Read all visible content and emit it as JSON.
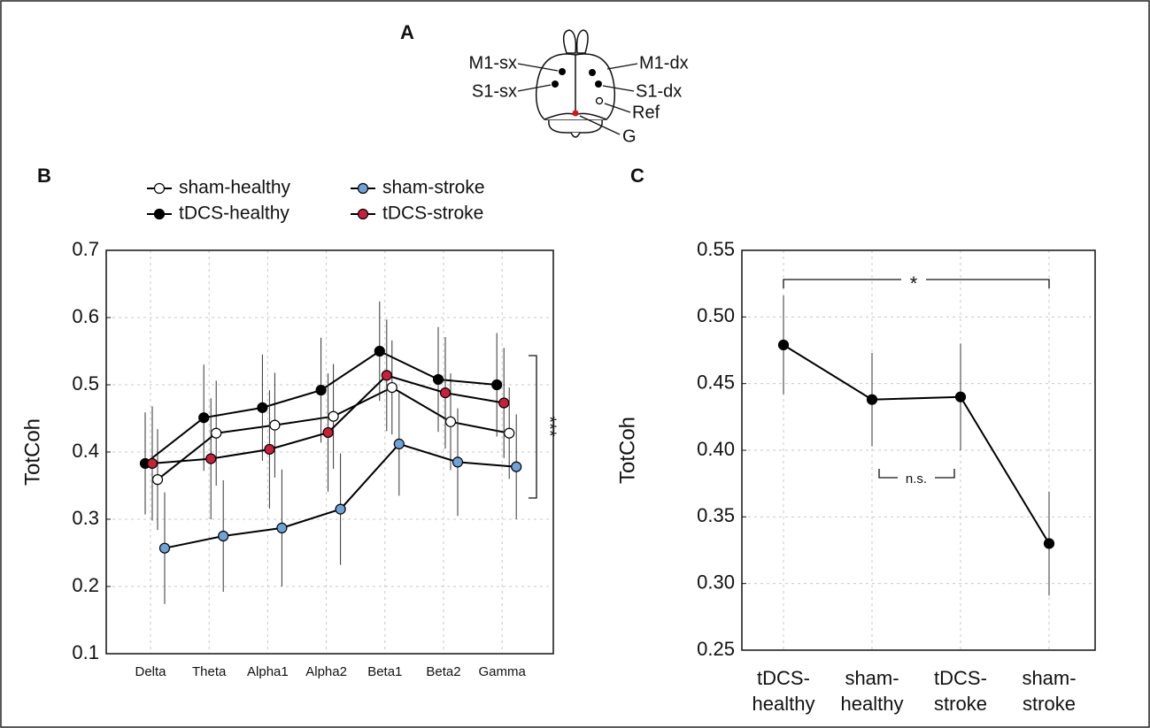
{
  "diagram": {
    "label": "A",
    "electrodes": [
      "M1-sx",
      "S1-sx",
      "M1-dx",
      "S1-dx",
      "Ref",
      "G"
    ]
  },
  "chart_data": [
    {
      "type": "line",
      "label": "B",
      "y_label": "TotCoh",
      "categories": [
        "Delta",
        "Theta",
        "Alpha1",
        "Alpha2",
        "Beta1",
        "Beta2",
        "Gamma"
      ],
      "line_color": "#000000",
      "series": [
        {
          "name": "sham-healthy",
          "color": "#ffffff",
          "values": [
            0.359,
            0.428,
            0.44,
            0.453,
            0.496,
            0.445,
            0.428
          ],
          "errors": [
            0.075,
            0.078,
            0.078,
            0.078,
            0.07,
            0.072,
            0.068
          ]
        },
        {
          "name": "tDCS-healthy",
          "color": "#000000",
          "values": [
            0.383,
            0.451,
            0.466,
            0.492,
            0.55,
            0.508,
            0.5
          ],
          "errors": [
            0.076,
            0.079,
            0.079,
            0.078,
            0.074,
            0.078,
            0.077
          ]
        },
        {
          "name": "sham-stroke",
          "color": "#6fa3d8",
          "values": [
            0.257,
            0.275,
            0.287,
            0.315,
            0.412,
            0.385,
            0.378
          ],
          "errors": [
            0.083,
            0.083,
            0.087,
            0.083,
            0.077,
            0.08,
            0.078
          ]
        },
        {
          "name": "tDCS-stroke",
          "color": "#c8203c",
          "values": [
            0.383,
            0.39,
            0.404,
            0.429,
            0.514,
            0.488,
            0.473
          ],
          "errors": [
            0.085,
            0.09,
            0.088,
            0.088,
            0.083,
            0.083,
            0.082
          ]
        }
      ],
      "ylim": [
        0.1,
        0.7
      ],
      "yticks": [
        0.1,
        0.2,
        0.3,
        0.4,
        0.5,
        0.6,
        0.7
      ],
      "grid": true,
      "annotation": "***"
    },
    {
      "type": "line",
      "label": "C",
      "y_label": "TotCoh",
      "categories": [
        "tDCS-\nhealthy",
        "sham-\nhealthy",
        "tDCS-\nstroke",
        "sham-\nstroke"
      ],
      "line_color": "#000000",
      "series": [
        {
          "color": "#000000",
          "values": [
            0.479,
            0.438,
            0.44,
            0.33
          ],
          "errors": [
            0.037,
            0.035,
            0.04,
            0.039
          ]
        }
      ],
      "ylim": [
        0.25,
        0.55
      ],
      "yticks": [
        0.25,
        {
          "value": 0.3,
          "label": "0.30"
        },
        0.35,
        {
          "value": 0.4,
          "label": "0.40"
        },
        0.45,
        {
          "value": 0.5,
          "label": "0.50"
        },
        0.55
      ],
      "grid": true,
      "annotations": [
        "*",
        "n.s."
      ]
    }
  ]
}
